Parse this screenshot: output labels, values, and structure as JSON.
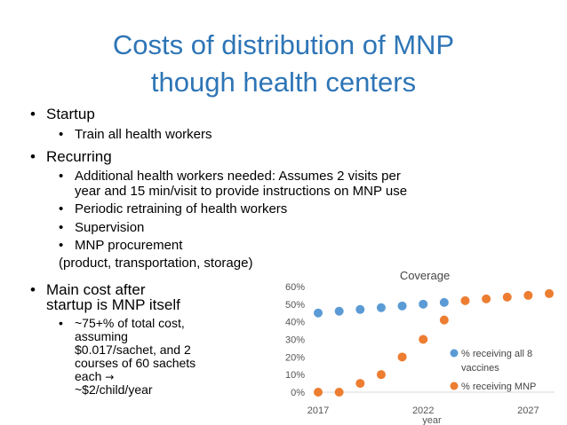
{
  "title": {
    "line1": "Costs of distribution of MNP",
    "line2": "though health centers"
  },
  "bullets": {
    "startup": {
      "label": "Startup",
      "items": [
        "Train all health workers"
      ]
    },
    "recurring": {
      "label": "Recurring",
      "item1_line1": "Additional health workers needed: Assumes 2 visits per",
      "item1_line2": "year and 15 min/visit to provide instructions on MNP use",
      "item2": "Periodic retraining of health workers",
      "item3": "Supervision",
      "item4": "MNP procurement",
      "note": "(product, transportation, storage)"
    },
    "main_cost": {
      "line1": "Main cost after",
      "line2": "startup is MNP itself",
      "detail_lines": [
        "~75+% of total cost,",
        "assuming",
        "$0.017/sachet, and 2",
        "courses of 60 sachets",
        "each"
      ],
      "detail_arrow": "→",
      "detail_last": "~$2/child/year"
    }
  },
  "chart_data": {
    "type": "scatter",
    "title": "Coverage",
    "xlabel": "year",
    "ylabel": "",
    "xlim": [
      2017,
      2028
    ],
    "ylim": [
      0,
      0.6
    ],
    "x_ticks": [
      2017,
      2022,
      2027
    ],
    "y_ticks": [
      0,
      0.1,
      0.2,
      0.3,
      0.4,
      0.5,
      0.6
    ],
    "y_tick_labels": [
      "0%",
      "10%",
      "20%",
      "30%",
      "40%",
      "50%",
      "60%"
    ],
    "grid": false,
    "legend": "right",
    "series": [
      {
        "name": "% receiving all 8 vaccines",
        "color": "#5b9bd5",
        "x": [
          2017,
          2018,
          2019,
          2020,
          2021,
          2022,
          2023
        ],
        "y": [
          0.45,
          0.46,
          0.47,
          0.48,
          0.49,
          0.5,
          0.51
        ]
      },
      {
        "name": "% receiving MNP",
        "color": "#ed7d31",
        "x": [
          2017,
          2018,
          2019,
          2020,
          2021,
          2022,
          2023,
          2024,
          2025,
          2026,
          2027,
          2028
        ],
        "y": [
          0.0,
          0.0,
          0.05,
          0.1,
          0.2,
          0.3,
          0.41,
          0.52,
          0.53,
          0.54,
          0.55,
          0.56
        ]
      }
    ]
  }
}
